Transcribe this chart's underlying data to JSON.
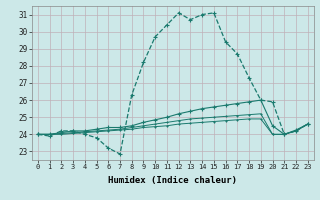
{
  "xlabel": "Humidex (Indice chaleur)",
  "background_color": "#cce8e8",
  "line_color": "#1a7a6e",
  "xlim": [
    -0.5,
    23.5
  ],
  "ylim": [
    22.5,
    31.5
  ],
  "xticks": [
    0,
    1,
    2,
    3,
    4,
    5,
    6,
    7,
    8,
    9,
    10,
    11,
    12,
    13,
    14,
    15,
    16,
    17,
    18,
    19,
    20,
    21,
    22,
    23
  ],
  "yticks": [
    23,
    24,
    25,
    26,
    27,
    28,
    29,
    30,
    31
  ],
  "series": [
    {
      "x": [
        0,
        1,
        2,
        3,
        4,
        5,
        6,
        7,
        8,
        9,
        10,
        11,
        12,
        13,
        14,
        15,
        16,
        17,
        18,
        19,
        20,
        21,
        22,
        23
      ],
      "y": [
        24.0,
        23.9,
        24.2,
        24.2,
        24.0,
        23.8,
        23.2,
        22.85,
        26.3,
        28.2,
        29.7,
        30.4,
        31.1,
        30.7,
        31.0,
        31.1,
        29.4,
        28.7,
        27.3,
        26.0,
        25.9,
        24.0,
        24.2,
        24.6
      ],
      "linestyle": "--",
      "linewidth": 0.9,
      "markersize": 3.5
    },
    {
      "x": [
        0,
        1,
        2,
        3,
        4,
        5,
        6,
        7,
        8,
        9,
        10,
        11,
        12,
        13,
        14,
        15,
        16,
        17,
        18,
        19,
        20,
        21,
        22,
        23
      ],
      "y": [
        24.0,
        24.0,
        24.1,
        24.2,
        24.2,
        24.3,
        24.4,
        24.4,
        24.5,
        24.7,
        24.85,
        25.0,
        25.2,
        25.35,
        25.5,
        25.6,
        25.7,
        25.8,
        25.9,
        26.0,
        24.5,
        24.0,
        24.25,
        24.6
      ],
      "linestyle": "-",
      "linewidth": 0.8,
      "markersize": 2.5
    },
    {
      "x": [
        0,
        1,
        2,
        3,
        4,
        5,
        6,
        7,
        8,
        9,
        10,
        11,
        12,
        13,
        14,
        15,
        16,
        17,
        18,
        19,
        20,
        21,
        22,
        23
      ],
      "y": [
        24.0,
        24.0,
        24.05,
        24.1,
        24.15,
        24.2,
        24.25,
        24.3,
        24.4,
        24.5,
        24.6,
        24.7,
        24.8,
        24.9,
        24.95,
        25.0,
        25.05,
        25.1,
        25.15,
        25.2,
        24.0,
        24.0,
        24.2,
        24.6
      ],
      "linestyle": "-",
      "linewidth": 0.7,
      "markersize": 2.0
    },
    {
      "x": [
        0,
        1,
        2,
        3,
        4,
        5,
        6,
        7,
        8,
        9,
        10,
        11,
        12,
        13,
        14,
        15,
        16,
        17,
        18,
        19,
        20,
        21,
        22,
        23
      ],
      "y": [
        24.0,
        24.0,
        24.0,
        24.05,
        24.1,
        24.15,
        24.2,
        24.25,
        24.3,
        24.4,
        24.45,
        24.5,
        24.6,
        24.65,
        24.7,
        24.75,
        24.8,
        24.85,
        24.9,
        24.9,
        24.0,
        24.0,
        24.2,
        24.6
      ],
      "linestyle": "-",
      "linewidth": 0.7,
      "markersize": 2.0
    }
  ]
}
